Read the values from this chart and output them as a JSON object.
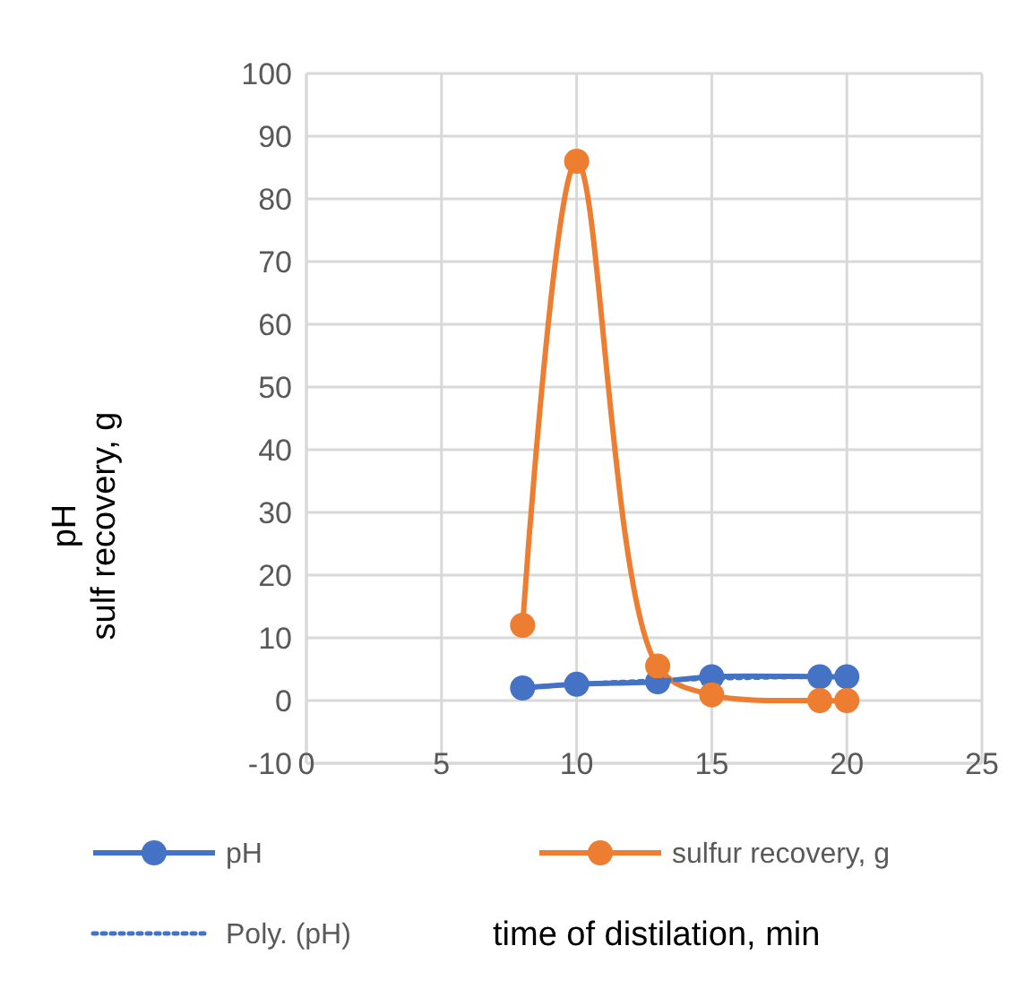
{
  "chart_data": {
    "type": "line",
    "xlabel": "time of distilation, min",
    "ylabel": "pH\nsulf recovery, g",
    "xlim": [
      0,
      25
    ],
    "xticks": [
      0,
      5,
      10,
      15,
      20,
      25
    ],
    "ylim": [
      -10,
      100
    ],
    "yticks": [
      -10,
      0,
      10,
      20,
      30,
      40,
      50,
      60,
      70,
      80,
      90,
      100
    ],
    "grid": true,
    "legend": "bottom",
    "marker": "circle",
    "line_style": "solid",
    "series": [
      {
        "name": "pH",
        "color": "#4472c4",
        "x": [
          8,
          10,
          13,
          15,
          19,
          20
        ],
        "values": [
          2.0,
          2.6,
          3.0,
          3.8,
          3.8,
          3.8
        ]
      },
      {
        "name": "sulfur recovery, g",
        "color": "#ed7d31",
        "x": [
          8,
          10,
          13,
          15,
          19,
          20
        ],
        "values": [
          12,
          86,
          5.5,
          0.9,
          0,
          0
        ]
      },
      {
        "name": "Poly. (pH)",
        "type": "line",
        "color": "#4472c4",
        "marker": "none",
        "line_style": "dotted",
        "x": [
          8,
          10,
          13,
          15,
          19,
          20
        ],
        "values": [
          2.0,
          2.6,
          3.2,
          3.5,
          3.8,
          3.8
        ]
      }
    ]
  }
}
